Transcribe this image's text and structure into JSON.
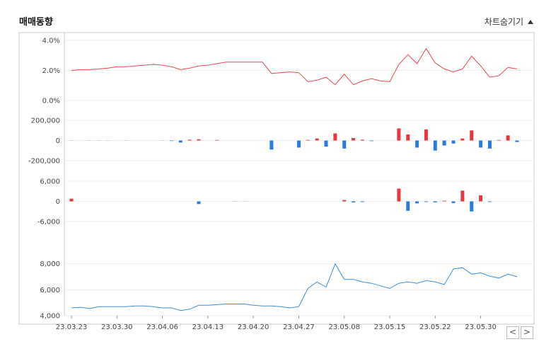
{
  "header": {
    "title": "매매동향",
    "toggle_label": "차트숨기기"
  },
  "colors": {
    "price": "#e8484f",
    "up": "#e8363f",
    "down": "#2a7be0",
    "volume_line": "#3a8fd8",
    "grid": "#eeeeee",
    "border": "#cccccc"
  },
  "chart_data": [
    {
      "type": "line",
      "name": "price",
      "ylim": [
        0,
        4
      ],
      "yticks": [
        "4.0%",
        "2.0%",
        "0.0%"
      ],
      "ytick_values": [
        4,
        2,
        0
      ],
      "values": [
        2.0,
        2.05,
        2.05,
        2.1,
        2.15,
        2.25,
        2.25,
        2.3,
        2.35,
        2.4,
        2.35,
        2.25,
        2.05,
        2.15,
        2.3,
        2.35,
        2.45,
        2.55,
        2.55,
        2.55,
        2.55,
        2.55,
        1.8,
        1.85,
        1.9,
        1.85,
        1.25,
        1.35,
        1.55,
        1.05,
        1.75,
        1.05,
        1.3,
        1.45,
        1.3,
        1.25,
        2.4,
        3.05,
        2.45,
        3.45,
        2.5,
        2.1,
        1.9,
        2.1,
        2.95,
        2.3,
        1.55,
        1.65,
        2.2,
        2.1
      ]
    },
    {
      "type": "bar",
      "name": "foreign",
      "ylim": [
        -200000,
        200000
      ],
      "yticks": [
        "200,000",
        "0",
        "-200,000"
      ],
      "ytick_values": [
        200000,
        0,
        -200000
      ],
      "values": [
        2000,
        0,
        1000,
        3000,
        2000,
        0,
        -3000,
        0,
        0,
        0,
        -4000,
        -5000,
        -20000,
        8000,
        12000,
        0,
        5000,
        0,
        0,
        0,
        0,
        0,
        -90000,
        0,
        0,
        -70000,
        6000,
        20000,
        -60000,
        70000,
        -80000,
        25000,
        8000,
        -6000,
        0,
        0,
        120000,
        60000,
        -70000,
        110000,
        -100000,
        -50000,
        -30000,
        20000,
        100000,
        -70000,
        -80000,
        5000,
        50000,
        -15000
      ]
    },
    {
      "type": "bar",
      "name": "institution",
      "ylim": [
        -6000,
        6000
      ],
      "yticks": [
        "6,000",
        "0",
        "-6,000"
      ],
      "ytick_values": [
        6000,
        0,
        -6000
      ],
      "values": [
        800,
        0,
        0,
        0,
        0,
        0,
        0,
        0,
        0,
        0,
        0,
        0,
        0,
        0,
        -800,
        0,
        0,
        0,
        50,
        50,
        0,
        0,
        0,
        0,
        0,
        0,
        0,
        0,
        0,
        0,
        400,
        -300,
        -200,
        0,
        0,
        0,
        3800,
        -2800,
        -600,
        -200,
        -300,
        200,
        -500,
        3200,
        -3000,
        1800,
        -200,
        0,
        0,
        0
      ]
    },
    {
      "type": "line",
      "name": "volume",
      "ylim": [
        4000,
        8800
      ],
      "yticks": [
        "8,000",
        "6,000",
        "4,000"
      ],
      "ytick_values": [
        8000,
        6000,
        4000
      ],
      "values": [
        4600,
        4650,
        4550,
        4700,
        4700,
        4700,
        4700,
        4750,
        4750,
        4700,
        4600,
        4600,
        4400,
        4500,
        4800,
        4800,
        4850,
        4900,
        4900,
        4900,
        4800,
        4750,
        4750,
        4700,
        4600,
        4700,
        6100,
        6600,
        6200,
        8000,
        6800,
        6800,
        6600,
        6500,
        6300,
        6100,
        6500,
        6600,
        6500,
        6700,
        6600,
        6400,
        7600,
        7700,
        7200,
        7300,
        7050,
        6900,
        7200,
        7000
      ],
      "xticks": [
        "23.03.23",
        "23.03.30",
        "23.04.06",
        "23.04.13",
        "23.04.20",
        "23.04.27",
        "23.05.08",
        "23.05.15",
        "23.05.22",
        "23.05.30"
      ],
      "xtick_positions": [
        0,
        5,
        10,
        15,
        20,
        25,
        30,
        35,
        40,
        45
      ]
    }
  ],
  "nav": {
    "prev": "<",
    "next": ">"
  }
}
